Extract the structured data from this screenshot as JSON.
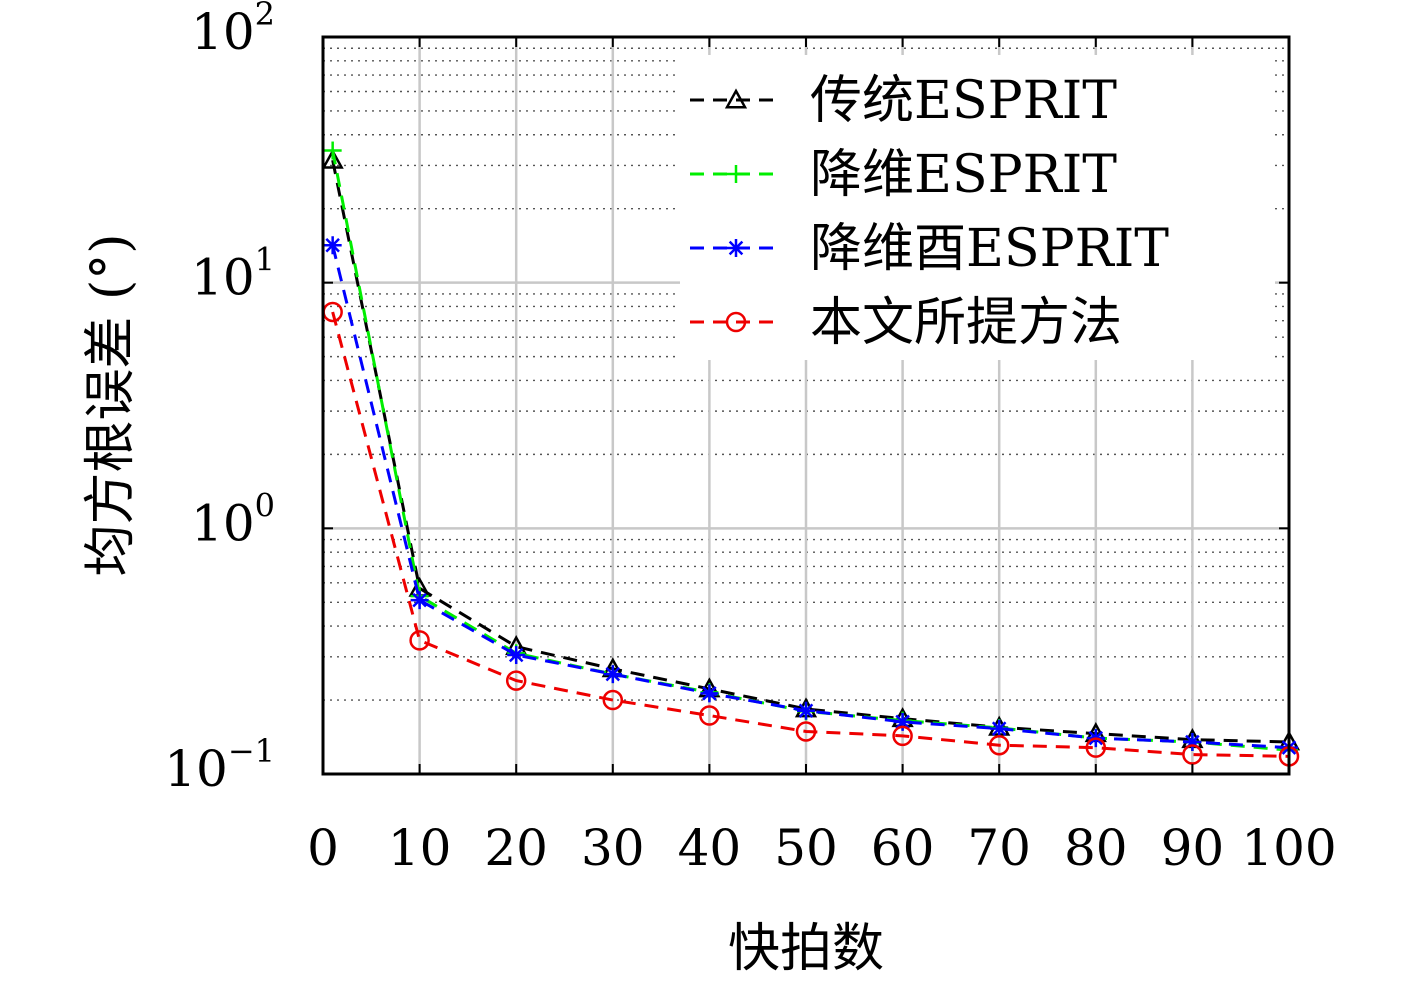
{
  "chart_data": {
    "type": "line",
    "title": "",
    "xlabel": "快拍数",
    "ylabel": "均方根误差 (°)",
    "xlim": [
      0,
      100
    ],
    "ylim": [
      0.1,
      100
    ],
    "yscale": "log",
    "grid": true,
    "legend_position": "top-right",
    "x_ticks": [
      "0",
      "10",
      "20",
      "30",
      "40",
      "50",
      "60",
      "70",
      "80",
      "90",
      "100"
    ],
    "y_ticks": [
      {
        "value": 0.1,
        "base": "10",
        "exp": "−1"
      },
      {
        "value": 1,
        "base": "10",
        "exp": "0"
      },
      {
        "value": 10,
        "base": "10",
        "exp": "1"
      },
      {
        "value": 100,
        "base": "10",
        "exp": "2"
      }
    ],
    "series": [
      {
        "name": "传统ESPRIT",
        "color": "#000000",
        "marker": "triangle",
        "x": [
          1,
          10,
          20,
          30,
          40,
          50,
          60,
          70,
          80,
          90,
          100
        ],
        "y": [
          31.5,
          0.57,
          0.33,
          0.268,
          0.222,
          0.184,
          0.168,
          0.155,
          0.146,
          0.138,
          0.135
        ]
      },
      {
        "name": "降维ESPRIT",
        "color": "#00ee00",
        "marker": "plus",
        "x": [
          1,
          10,
          20,
          30,
          40,
          50,
          60,
          70,
          80,
          90,
          100
        ],
        "y": [
          34.5,
          0.53,
          0.31,
          0.255,
          0.215,
          0.18,
          0.165,
          0.154,
          0.14,
          0.135,
          0.125
        ]
      },
      {
        "name": "降维酉ESPRIT",
        "color": "#0000ff",
        "marker": "asterisk",
        "x": [
          1,
          10,
          20,
          30,
          40,
          50,
          60,
          70,
          80,
          90,
          100
        ],
        "y": [
          14.2,
          0.51,
          0.305,
          0.255,
          0.213,
          0.181,
          0.163,
          0.153,
          0.14,
          0.135,
          0.128
        ]
      },
      {
        "name": "本文所提方法",
        "color": "#ee0000",
        "marker": "circle",
        "x": [
          1,
          10,
          20,
          30,
          40,
          50,
          60,
          70,
          80,
          90,
          100
        ],
        "y": [
          7.6,
          0.35,
          0.24,
          0.2,
          0.173,
          0.149,
          0.143,
          0.131,
          0.128,
          0.12,
          0.118
        ]
      }
    ]
  }
}
